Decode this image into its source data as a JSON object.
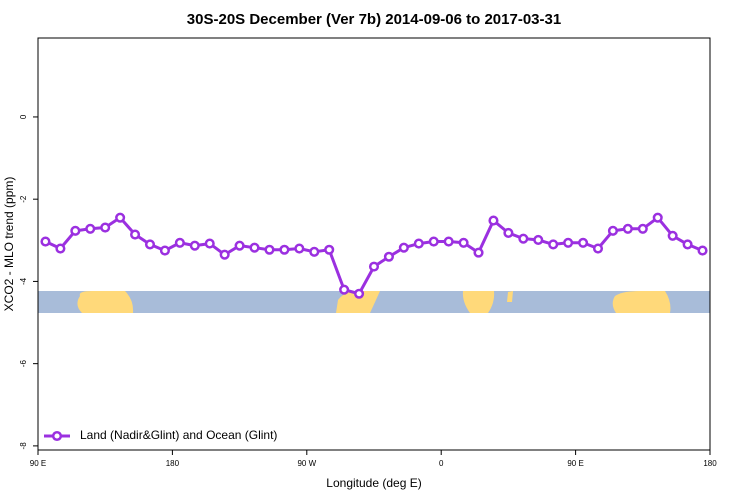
{
  "chart_data": {
    "type": "line",
    "title": "30S-20S December (Ver 7b)   2014-09-06 to 2017-03-31",
    "x_label": "Longitude (deg E)",
    "y_label": "XCO2 - MLO trend (ppm)",
    "xlim": [
      90,
      540
    ],
    "xticks": [
      {
        "value": 90,
        "label": "90 E"
      },
      {
        "value": 180,
        "label": "180"
      },
      {
        "value": 270,
        "label": "90 W"
      },
      {
        "value": 360,
        "label": "0"
      },
      {
        "value": 450,
        "label": "90 E"
      },
      {
        "value": 540,
        "label": "180"
      }
    ],
    "ylim": [
      -8.1,
      1.92
    ],
    "yticks": [
      -8,
      -6,
      -4,
      -2,
      0
    ],
    "legend": "bottomleft",
    "x": [
      95,
      105,
      115,
      125,
      135,
      145,
      155,
      165,
      175,
      185,
      195,
      205,
      215,
      225,
      235,
      245,
      255,
      265,
      275,
      285,
      295,
      305,
      315,
      325,
      335,
      345,
      355,
      365,
      375,
      385,
      395,
      405,
      415,
      425,
      435,
      445,
      455,
      465,
      475,
      485,
      495,
      505,
      515,
      525,
      535
    ],
    "series": [
      {
        "name": "Land (Nadir&Glint) and Ocean (Glint)",
        "color": "#9b30e0",
        "values": [
          -3.03,
          -3.2,
          -2.77,
          -2.72,
          -2.69,
          -2.45,
          -2.86,
          -3.1,
          -3.25,
          -3.06,
          -3.13,
          -3.08,
          -3.35,
          -3.13,
          -3.18,
          -3.23,
          -3.23,
          -3.2,
          -3.28,
          -3.23,
          -4.2,
          -4.3,
          -3.64,
          -3.4,
          -3.18,
          -3.08,
          -3.03,
          -3.03,
          -3.06,
          -3.3,
          -2.52,
          -2.82,
          -2.96,
          -2.99,
          -3.1,
          -3.06,
          -3.06,
          -3.2,
          -2.77,
          -2.72,
          -2.72,
          -2.45,
          -2.89,
          -3.1,
          -3.25
        ]
      }
    ]
  }
}
